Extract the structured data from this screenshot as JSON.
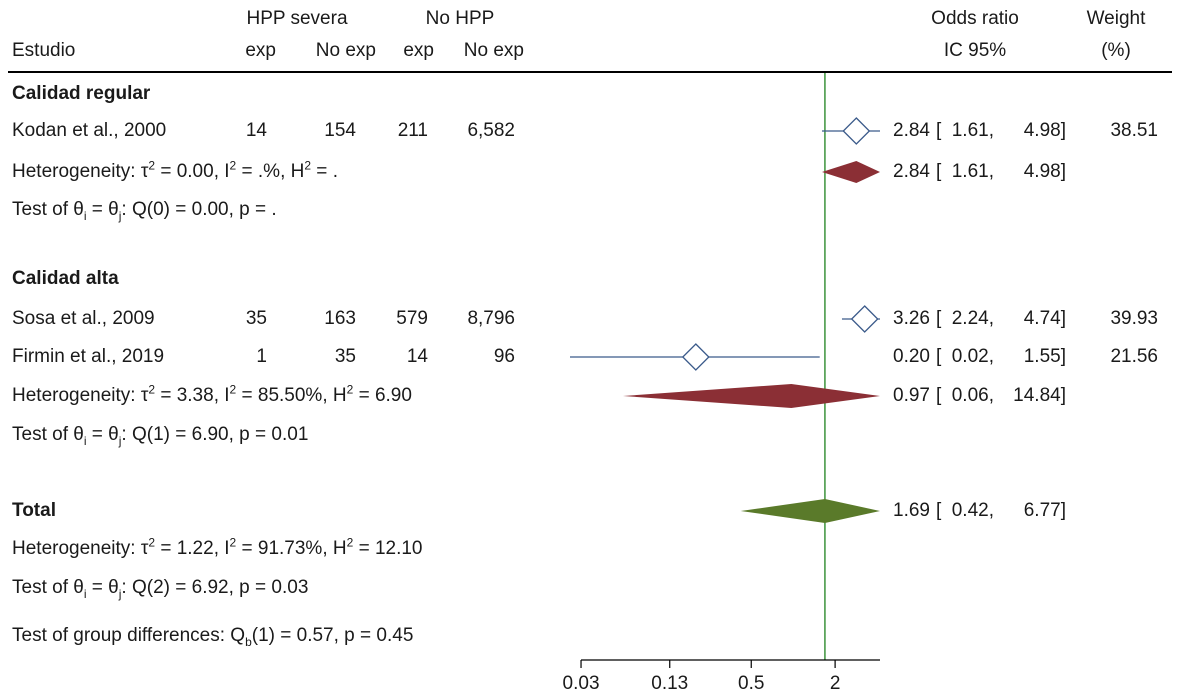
{
  "header": {
    "group1": "HPP severa",
    "group2": "No HPP",
    "study": "Estudio",
    "exp1": "exp",
    "noexp1": "No exp",
    "exp2": "exp",
    "noexp2": "No exp",
    "or_line1": "Odds ratio",
    "or_line2": "IC 95%",
    "weight_line1": "Weight",
    "weight_line2": "(%)"
  },
  "sections": [
    {
      "title": "Calidad regular",
      "studies": [
        {
          "name": "Kodan et al., 2000",
          "exp1": "14",
          "noexp1": "154",
          "exp2": "211",
          "noexp2": "6,582",
          "or": "2.84",
          "lo": "1.61,",
          "hi": "4.98]",
          "weight": "38.51"
        }
      ],
      "summary": {
        "or": "2.84",
        "lo": "1.61,",
        "hi": "4.98]"
      },
      "het": {
        "tau2": "0.00",
        "i2": ".%",
        "h2": "."
      },
      "test": {
        "df": "0",
        "q": "0.00",
        "p": "."
      }
    },
    {
      "title": "Calidad alta",
      "studies": [
        {
          "name": "Sosa et al., 2009",
          "exp1": "35",
          "noexp1": "163",
          "exp2": "579",
          "noexp2": "8,796",
          "or": "3.26",
          "lo": "2.24,",
          "hi": "4.74]",
          "weight": "39.93"
        },
        {
          "name": "Firmin et al., 2019",
          "exp1": "1",
          "noexp1": "35",
          "exp2": "14",
          "noexp2": "96",
          "or": "0.20",
          "lo": "0.02,",
          "hi": "1.55]",
          "weight": "21.56"
        }
      ],
      "summary": {
        "or": "0.97",
        "lo": "0.06,",
        "hi": "14.84]"
      },
      "het": {
        "tau2": "3.38",
        "i2": "85.50%",
        "h2": "6.90"
      },
      "test": {
        "df": "1",
        "q": "6.90",
        "p": "0.01"
      }
    }
  ],
  "total": {
    "title": "Total",
    "summary": {
      "or": "1.69",
      "lo": "0.42,",
      "hi": "6.77]"
    },
    "het": {
      "tau2": "1.22",
      "i2": "91.73%",
      "h2": "12.10"
    },
    "test": {
      "df": "2",
      "q": "6.92",
      "p": "0.03"
    }
  },
  "group_diff": {
    "df": "1",
    "q": "0.57",
    "p": "0.45"
  },
  "chart_data": {
    "type": "forest",
    "x_scale": "log",
    "x_ticks": [
      "0.03",
      "0.13",
      "0.5",
      "2"
    ],
    "x_tick_values": [
      0.03,
      0.13,
      0.5,
      2
    ],
    "xlim": [
      0.025,
      4.2
    ],
    "reference_line": 1.69,
    "studies": [
      {
        "name": "Kodan et al., 2000",
        "or": 2.84,
        "lo": 1.61,
        "hi": 4.98
      },
      {
        "name": "Sosa et al., 2009",
        "or": 3.26,
        "lo": 2.24,
        "hi": 4.74
      },
      {
        "name": "Firmin et al., 2019",
        "or": 0.2,
        "lo": 0.02,
        "hi": 1.55
      }
    ],
    "subgroup_summaries": [
      {
        "name": "Calidad regular",
        "or": 2.84,
        "lo": 1.61,
        "hi": 4.98
      },
      {
        "name": "Calidad alta",
        "or": 0.97,
        "lo": 0.06,
        "hi": 14.84
      }
    ],
    "overall": {
      "name": "Total",
      "or": 1.69,
      "lo": 0.42,
      "hi": 6.77
    },
    "colors": {
      "study_marker": "#3a5a8a",
      "subgroup_diamond": "#8b2f35",
      "overall_diamond": "#5a7a2a",
      "reference_line": "#2e8b2e"
    }
  }
}
